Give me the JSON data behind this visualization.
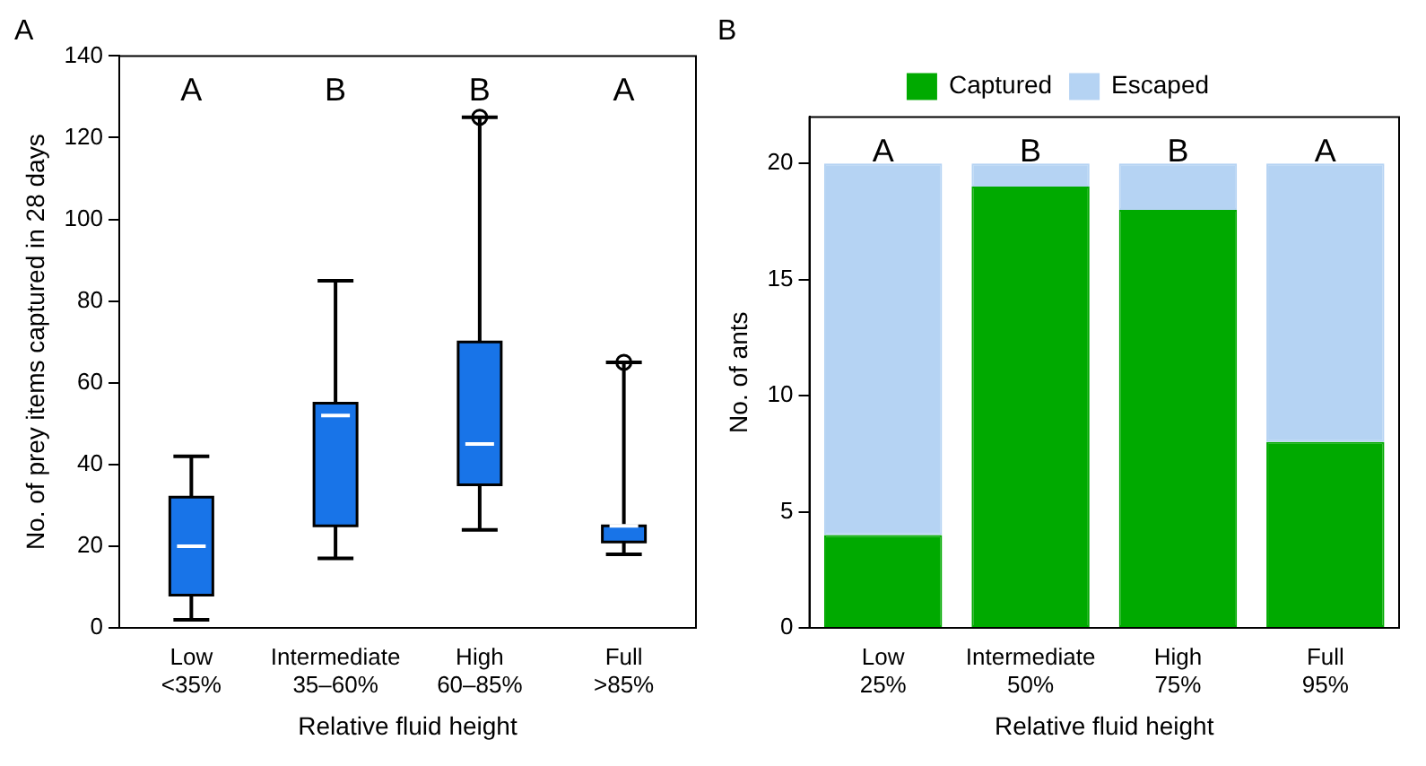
{
  "chart_data": [
    {
      "type": "box",
      "title": "A",
      "categories": [
        "Low\n<35%",
        "Intermediate\n35–60%",
        "High\n60–85%",
        "Full\n>85%"
      ],
      "color": "#1874e8",
      "boxes": [
        {
          "low": 2,
          "q1": 8,
          "median": 20,
          "q3": 32,
          "high": 42
        },
        {
          "low": 17,
          "q1": 25,
          "median": 52,
          "q3": 55,
          "high": 85
        },
        {
          "low": 24,
          "q1": 35,
          "median": 45,
          "q3": 70,
          "high": 125,
          "outliers": [
            125
          ]
        },
        {
          "low": 18,
          "q1": 21,
          "median": 25,
          "q3": 25,
          "high": 65,
          "outliers": [
            65
          ]
        }
      ],
      "xlabel": "Relative fluid height",
      "ylabel": "No. of prey items captured in 28 days",
      "ylim": [
        0,
        140
      ],
      "yticks": [
        0,
        20,
        40,
        60,
        80,
        100,
        120,
        140
      ],
      "grid": false,
      "legend": false,
      "annotations": [
        "A",
        "B",
        "B",
        "A"
      ]
    },
    {
      "type": "bar",
      "title": "B",
      "stacked": true,
      "categories": [
        "Low\n25%",
        "Intermediate\n50%",
        "High\n75%",
        "Full\n95%"
      ],
      "series": [
        {
          "name": "Captured",
          "color": "#00aa00",
          "values": [
            4,
            19,
            18,
            8
          ]
        },
        {
          "name": "Escaped",
          "color": "#b5d3f3",
          "values": [
            16,
            1,
            2,
            12
          ]
        }
      ],
      "xlabel": "Relative fluid height",
      "ylabel": "No. of ants",
      "ylim": [
        0,
        22
      ],
      "yticks": [
        0,
        5,
        10,
        15,
        20
      ],
      "grid": false,
      "legend": "top",
      "annotations": [
        "A",
        "B",
        "B",
        "A"
      ]
    }
  ]
}
